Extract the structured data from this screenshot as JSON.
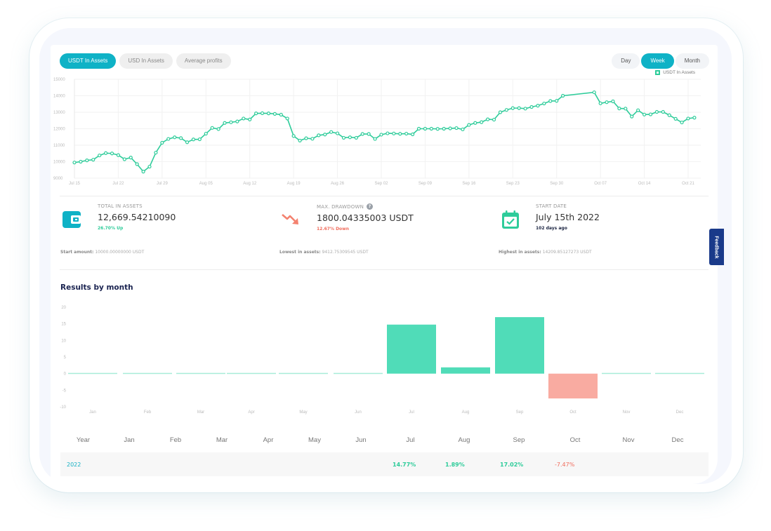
{
  "toggles": {
    "metric": [
      {
        "label": "USDT In Assets",
        "active": true
      },
      {
        "label": "USD In Assets",
        "active": false
      },
      {
        "label": "Average profits",
        "active": false
      }
    ],
    "period": [
      {
        "label": "Day",
        "active": false
      },
      {
        "label": "Week",
        "active": true
      },
      {
        "label": "Month",
        "active": false
      }
    ]
  },
  "legend": {
    "label": "USDT In Assets",
    "color": "#2ecc9a"
  },
  "stats": {
    "total": {
      "label": "TOTAL IN ASSETS",
      "value": "12,669.54210090",
      "change": "26.70% Up",
      "foot_label": "Start amount:",
      "foot_value": "10000.00000000 USDT"
    },
    "drawdown": {
      "label": "MAX. DRAWDOWN",
      "value": "1800.04335003 USDT",
      "change": "12.67% Down",
      "foot_label": "Lowest in assets:",
      "foot_value": "9412.75309545 USDT"
    },
    "start": {
      "label": "START DATE",
      "value": "July 15th 2022",
      "sub": "102 days ago",
      "foot_label": "Highest in assets:",
      "foot_value": "14209.85127273 USDT"
    }
  },
  "feedback": {
    "label": "Feedback"
  },
  "results": {
    "title": "Results by month",
    "headers": [
      "Year",
      "Jan",
      "Feb",
      "Mar",
      "Apr",
      "May",
      "Jun",
      "Jul",
      "Aug",
      "Sep",
      "Oct",
      "Nov",
      "Dec"
    ],
    "rows": [
      {
        "year": "2022",
        "values": [
          "",
          "",
          "",
          "",
          "",
          "",
          "14.77%",
          "1.89%",
          "17.02%",
          "-7.47%",
          "",
          ""
        ]
      }
    ]
  },
  "colors": {
    "accent": "#0fb2c6",
    "positive": "#2ecc9a",
    "negative": "#f06d5d",
    "bar_positive": "#50dcb8",
    "bar_negative": "#f9aba1"
  },
  "chart_data": [
    {
      "type": "line",
      "title": "USDT In Assets",
      "xlabel": "",
      "ylabel": "",
      "ylim": [
        9000,
        15000
      ],
      "yticks": [
        9000,
        10000,
        11000,
        12000,
        13000,
        14000,
        15000
      ],
      "xticks": [
        "Jul 15",
        "Jul 22",
        "Jul 29",
        "Aug 05",
        "Aug 12",
        "Aug 19",
        "Aug 26",
        "Sep 02",
        "Sep 09",
        "Sep 16",
        "Sep 23",
        "Sep 30",
        "Oct 07",
        "Oct 14",
        "Oct 21"
      ],
      "grid": true,
      "legend_position": "top-right",
      "series": [
        {
          "name": "USDT In Assets",
          "points": [
            [
              0,
              9950
            ],
            [
              1,
              10000
            ],
            [
              2,
              10080
            ],
            [
              3,
              10120
            ],
            [
              4,
              10380
            ],
            [
              5,
              10520
            ],
            [
              6,
              10500
            ],
            [
              7,
              10400
            ],
            [
              8,
              10150
            ],
            [
              9,
              10250
            ],
            [
              10,
              9850
            ],
            [
              11,
              9400
            ],
            [
              12,
              9700
            ],
            [
              13,
              10550
            ],
            [
              14,
              11150
            ],
            [
              15,
              11380
            ],
            [
              16,
              11480
            ],
            [
              17,
              11430
            ],
            [
              18,
              11180
            ],
            [
              19,
              11350
            ],
            [
              20,
              11360
            ],
            [
              21,
              11700
            ],
            [
              22,
              12050
            ],
            [
              23,
              11980
            ],
            [
              24,
              12350
            ],
            [
              25,
              12390
            ],
            [
              26,
              12440
            ],
            [
              27,
              12620
            ],
            [
              28,
              12560
            ],
            [
              29,
              12930
            ],
            [
              30,
              12940
            ],
            [
              31,
              12930
            ],
            [
              32,
              12900
            ],
            [
              33,
              12850
            ],
            [
              34,
              12620
            ],
            [
              35,
              11560
            ],
            [
              36,
              11280
            ],
            [
              37,
              11420
            ],
            [
              38,
              11390
            ],
            [
              39,
              11600
            ],
            [
              40,
              11650
            ],
            [
              41,
              11800
            ],
            [
              42,
              11720
            ],
            [
              43,
              11450
            ],
            [
              44,
              11480
            ],
            [
              45,
              11450
            ],
            [
              46,
              11680
            ],
            [
              47,
              11680
            ],
            [
              48,
              11380
            ],
            [
              49,
              11640
            ],
            [
              50,
              11720
            ],
            [
              51,
              11710
            ],
            [
              52,
              11690
            ],
            [
              53,
              11700
            ],
            [
              54,
              11660
            ],
            [
              55,
              12000
            ],
            [
              56,
              12000
            ],
            [
              57,
              12000
            ],
            [
              58,
              11990
            ],
            [
              59,
              12000
            ],
            [
              60,
              12020
            ],
            [
              61,
              12040
            ],
            [
              62,
              11960
            ],
            [
              63,
              12230
            ],
            [
              64,
              12350
            ],
            [
              65,
              12400
            ],
            [
              66,
              12570
            ],
            [
              67,
              12550
            ],
            [
              68,
              13000
            ],
            [
              69,
              13140
            ],
            [
              70,
              13250
            ],
            [
              71,
              13250
            ],
            [
              72,
              13220
            ],
            [
              73,
              13320
            ],
            [
              74,
              13400
            ],
            [
              75,
              13530
            ],
            [
              76,
              13680
            ],
            [
              77,
              13690
            ],
            [
              78,
              14000
            ],
            [
              83,
              14210
            ],
            [
              84,
              13540
            ],
            [
              85,
              13610
            ],
            [
              86,
              13660
            ],
            [
              87,
              13230
            ],
            [
              88,
              13220
            ],
            [
              89,
              12740
            ],
            [
              90,
              13120
            ],
            [
              91,
              12860
            ],
            [
              92,
              12870
            ],
            [
              93,
              13020
            ],
            [
              94,
              13020
            ],
            [
              95,
              12820
            ],
            [
              96,
              12600
            ],
            [
              97,
              12380
            ],
            [
              98,
              12620
            ],
            [
              99,
              12670
            ]
          ]
        }
      ]
    },
    {
      "type": "bar",
      "title": "Results by month",
      "categories": [
        "Jan",
        "Feb",
        "Mar",
        "Apr",
        "May",
        "Jun",
        "Jul",
        "Aug",
        "Sep",
        "Oct",
        "Nov",
        "Dec"
      ],
      "values": [
        0,
        0,
        0,
        0,
        0,
        0,
        14.77,
        1.89,
        17.02,
        -7.47,
        0,
        0
      ],
      "ylim": [
        -10,
        20
      ],
      "yticks": [
        -10,
        -5,
        0,
        5,
        10,
        15,
        20
      ],
      "xlabel": "",
      "ylabel": ""
    }
  ]
}
